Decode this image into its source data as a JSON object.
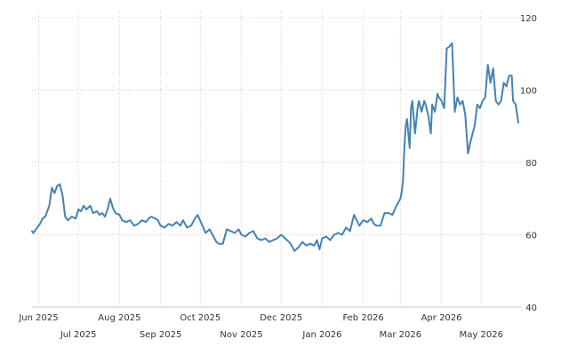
{
  "chart_data": {
    "type": "line",
    "title": "",
    "xlabel": "",
    "ylabel": "",
    "grid": true,
    "legend": "none",
    "y_axis_position": "right",
    "ylim": [
      40,
      120
    ],
    "yticks": [
      40,
      60,
      80,
      100,
      120
    ],
    "xlim": [
      "2025-05-27",
      "2026-05-31"
    ],
    "xticks": [
      {
        "date": "2025-06-01",
        "label": "Jun 2025",
        "row": 1
      },
      {
        "date": "2025-07-01",
        "label": "Jul 2025",
        "row": 2
      },
      {
        "date": "2025-08-01",
        "label": "Aug 2025",
        "row": 1
      },
      {
        "date": "2025-09-01",
        "label": "Sep 2025",
        "row": 2
      },
      {
        "date": "2025-10-01",
        "label": "Oct 2025",
        "row": 1
      },
      {
        "date": "2025-11-01",
        "label": "Nov 2025",
        "row": 2
      },
      {
        "date": "2025-12-01",
        "label": "Dec 2025",
        "row": 1
      },
      {
        "date": "2026-01-01",
        "label": "Jan 2026",
        "row": 2
      },
      {
        "date": "2026-02-01",
        "label": "Feb 2026",
        "row": 1
      },
      {
        "date": "2026-03-01",
        "label": "Mar 2026",
        "row": 2
      },
      {
        "date": "2026-04-01",
        "label": "Apr 2026",
        "row": 1
      },
      {
        "date": "2026-05-01",
        "label": "May 2026",
        "row": 2
      }
    ],
    "colors": {
      "line": "#4682b4",
      "grid": "#d0d0d0",
      "text": "#333333"
    },
    "series": [
      {
        "name": "",
        "points": [
          [
            "2025-05-27",
            61
          ],
          [
            "2025-05-28",
            60.5
          ],
          [
            "2025-05-30",
            61.5
          ],
          [
            "2025-06-02",
            63
          ],
          [
            "2025-06-04",
            64.5
          ],
          [
            "2025-06-06",
            65
          ],
          [
            "2025-06-08",
            67
          ],
          [
            "2025-06-09",
            68
          ],
          [
            "2025-06-11",
            73
          ],
          [
            "2025-06-13",
            71.5
          ],
          [
            "2025-06-15",
            73.5
          ],
          [
            "2025-06-17",
            74
          ],
          [
            "2025-06-19",
            71
          ],
          [
            "2025-06-21",
            65
          ],
          [
            "2025-06-23",
            64
          ],
          [
            "2025-06-26",
            65
          ],
          [
            "2025-06-29",
            64.5
          ],
          [
            "2025-07-01",
            67
          ],
          [
            "2025-07-03",
            66.5
          ],
          [
            "2025-07-05",
            68
          ],
          [
            "2025-07-07",
            67
          ],
          [
            "2025-07-10",
            68
          ],
          [
            "2025-07-12",
            66
          ],
          [
            "2025-07-15",
            66.5
          ],
          [
            "2025-07-17",
            65.5
          ],
          [
            "2025-07-19",
            66
          ],
          [
            "2025-07-21",
            65
          ],
          [
            "2025-07-23",
            67
          ],
          [
            "2025-07-25",
            70
          ],
          [
            "2025-07-27",
            67.5
          ],
          [
            "2025-07-29",
            66
          ],
          [
            "2025-08-01",
            65.5
          ],
          [
            "2025-08-03",
            64
          ],
          [
            "2025-08-06",
            63.5
          ],
          [
            "2025-08-09",
            64
          ],
          [
            "2025-08-12",
            62.5
          ],
          [
            "2025-08-15",
            63
          ],
          [
            "2025-08-18",
            64
          ],
          [
            "2025-08-21",
            63.5
          ],
          [
            "2025-08-23",
            64.5
          ],
          [
            "2025-08-25",
            65
          ],
          [
            "2025-08-28",
            64.5
          ],
          [
            "2025-08-30",
            64
          ],
          [
            "2025-09-01",
            62.5
          ],
          [
            "2025-09-04",
            62
          ],
          [
            "2025-09-07",
            63
          ],
          [
            "2025-09-10",
            62.5
          ],
          [
            "2025-09-13",
            63.5
          ],
          [
            "2025-09-16",
            62.5
          ],
          [
            "2025-09-18",
            64
          ],
          [
            "2025-09-21",
            62
          ],
          [
            "2025-09-24",
            62.5
          ],
          [
            "2025-09-27",
            64.5
          ],
          [
            "2025-09-29",
            65.5
          ],
          [
            "2025-10-02",
            63
          ],
          [
            "2025-10-05",
            60.5
          ],
          [
            "2025-10-08",
            61.5
          ],
          [
            "2025-10-11",
            59.5
          ],
          [
            "2025-10-13",
            58
          ],
          [
            "2025-10-15",
            57.5
          ],
          [
            "2025-10-18",
            57.5
          ],
          [
            "2025-10-21",
            61.5
          ],
          [
            "2025-10-24",
            61
          ],
          [
            "2025-10-27",
            60.5
          ],
          [
            "2025-10-30",
            61.5
          ],
          [
            "2025-11-01",
            60
          ],
          [
            "2025-11-04",
            59.5
          ],
          [
            "2025-11-07",
            60.5
          ],
          [
            "2025-11-10",
            61
          ],
          [
            "2025-11-13",
            59
          ],
          [
            "2025-11-16",
            58.5
          ],
          [
            "2025-11-19",
            59
          ],
          [
            "2025-11-22",
            58
          ],
          [
            "2025-11-25",
            58.5
          ],
          [
            "2025-11-28",
            59
          ],
          [
            "2025-12-01",
            60
          ],
          [
            "2025-12-04",
            59
          ],
          [
            "2025-12-07",
            58
          ],
          [
            "2025-12-09",
            57
          ],
          [
            "2025-12-11",
            55.5
          ],
          [
            "2025-12-14",
            56.5
          ],
          [
            "2025-12-17",
            58
          ],
          [
            "2025-12-20",
            57
          ],
          [
            "2025-12-23",
            57.5
          ],
          [
            "2025-12-26",
            57
          ],
          [
            "2025-12-28",
            58.5
          ],
          [
            "2025-12-30",
            56
          ],
          [
            "2026-01-01",
            59
          ],
          [
            "2026-01-04",
            59.5
          ],
          [
            "2026-01-07",
            58.5
          ],
          [
            "2026-01-10",
            60
          ],
          [
            "2026-01-13",
            60.5
          ],
          [
            "2026-01-16",
            60
          ],
          [
            "2026-01-19",
            62
          ],
          [
            "2026-01-22",
            61
          ],
          [
            "2026-01-25",
            65.5
          ],
          [
            "2026-01-27",
            64
          ],
          [
            "2026-01-29",
            62.5
          ],
          [
            "2026-02-01",
            64
          ],
          [
            "2026-02-04",
            63.5
          ],
          [
            "2026-02-07",
            64.5
          ],
          [
            "2026-02-09",
            63
          ],
          [
            "2026-02-11",
            62.5
          ],
          [
            "2026-02-14",
            62.5
          ],
          [
            "2026-02-17",
            66
          ],
          [
            "2026-02-20",
            66
          ],
          [
            "2026-02-23",
            65.5
          ],
          [
            "2026-02-26",
            68
          ],
          [
            "2026-03-01",
            70
          ],
          [
            "2026-03-02",
            72
          ],
          [
            "2026-03-03",
            75
          ],
          [
            "2026-03-04",
            84
          ],
          [
            "2026-03-05",
            90
          ],
          [
            "2026-03-06",
            92
          ],
          [
            "2026-03-08",
            84
          ],
          [
            "2026-03-09",
            95
          ],
          [
            "2026-03-10",
            97
          ],
          [
            "2026-03-12",
            88
          ],
          [
            "2026-03-14",
            95
          ],
          [
            "2026-03-15",
            97
          ],
          [
            "2026-03-17",
            94
          ],
          [
            "2026-03-19",
            97
          ],
          [
            "2026-03-20",
            96
          ],
          [
            "2026-03-22",
            93
          ],
          [
            "2026-03-24",
            88
          ],
          [
            "2026-03-25",
            96
          ],
          [
            "2026-03-27",
            94
          ],
          [
            "2026-03-29",
            99
          ],
          [
            "2026-03-30",
            98
          ],
          [
            "2026-04-01",
            97
          ],
          [
            "2026-04-03",
            95
          ],
          [
            "2026-04-05",
            111.5
          ],
          [
            "2026-04-07",
            112
          ],
          [
            "2026-04-09",
            113
          ],
          [
            "2026-04-11",
            94
          ],
          [
            "2026-04-13",
            98
          ],
          [
            "2026-04-15",
            96
          ],
          [
            "2026-04-17",
            97
          ],
          [
            "2026-04-19",
            93
          ],
          [
            "2026-04-21",
            82.5
          ],
          [
            "2026-04-23",
            86
          ],
          [
            "2026-04-26",
            90
          ],
          [
            "2026-04-28",
            96
          ],
          [
            "2026-04-30",
            95
          ],
          [
            "2026-05-02",
            97
          ],
          [
            "2026-05-04",
            98
          ],
          [
            "2026-05-06",
            107
          ],
          [
            "2026-05-08",
            102
          ],
          [
            "2026-05-10",
            106
          ],
          [
            "2026-05-12",
            97
          ],
          [
            "2026-05-14",
            96
          ],
          [
            "2026-05-16",
            97
          ],
          [
            "2026-05-18",
            102
          ],
          [
            "2026-05-20",
            101
          ],
          [
            "2026-05-22",
            104
          ],
          [
            "2026-05-24",
            104
          ],
          [
            "2026-05-25",
            97
          ],
          [
            "2026-05-27",
            96
          ],
          [
            "2026-05-29",
            91
          ]
        ]
      }
    ]
  }
}
